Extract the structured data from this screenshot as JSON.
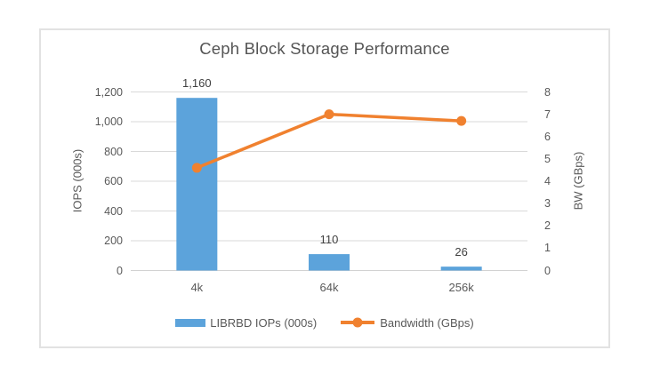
{
  "chart_data": {
    "type": "bar",
    "subtype": "combo-bar-line",
    "title": "Ceph Block Storage Performance",
    "categories": [
      "4k",
      "64k",
      "256k"
    ],
    "series": [
      {
        "name": "LIBRBD IOPs (000s)",
        "type": "bar",
        "axis": "left",
        "color": "#5CA3DB",
        "values": [
          1160,
          110,
          26
        ],
        "value_labels": [
          "1,160",
          "110",
          "26"
        ]
      },
      {
        "name": "Bandwidth (GBps)",
        "type": "line",
        "axis": "right",
        "color": "#F0812F",
        "values": [
          4.6,
          7.0,
          6.7
        ]
      }
    ],
    "left_axis": {
      "title": "IOPS (000s)",
      "min": 0,
      "max": 1200,
      "step": 200,
      "ticks": [
        "0",
        "200",
        "400",
        "600",
        "800",
        "1,000",
        "1,200"
      ]
    },
    "right_axis": {
      "title": "BW (GBps)",
      "min": 0,
      "max": 8,
      "step": 1,
      "ticks": [
        "0",
        "1",
        "2",
        "3",
        "4",
        "5",
        "6",
        "7",
        "8"
      ]
    },
    "grid": "horizontal gridlines on",
    "legend_position": "bottom"
  },
  "colors": {
    "bar": "#5CA3DB",
    "line": "#F0812F",
    "gridline": "#D9D9D9",
    "axis_line": "#D2D2D2",
    "title_text": "#555555",
    "label_text": "#595959",
    "value_text": "#404040",
    "frame_border": "#E2E2E2"
  }
}
